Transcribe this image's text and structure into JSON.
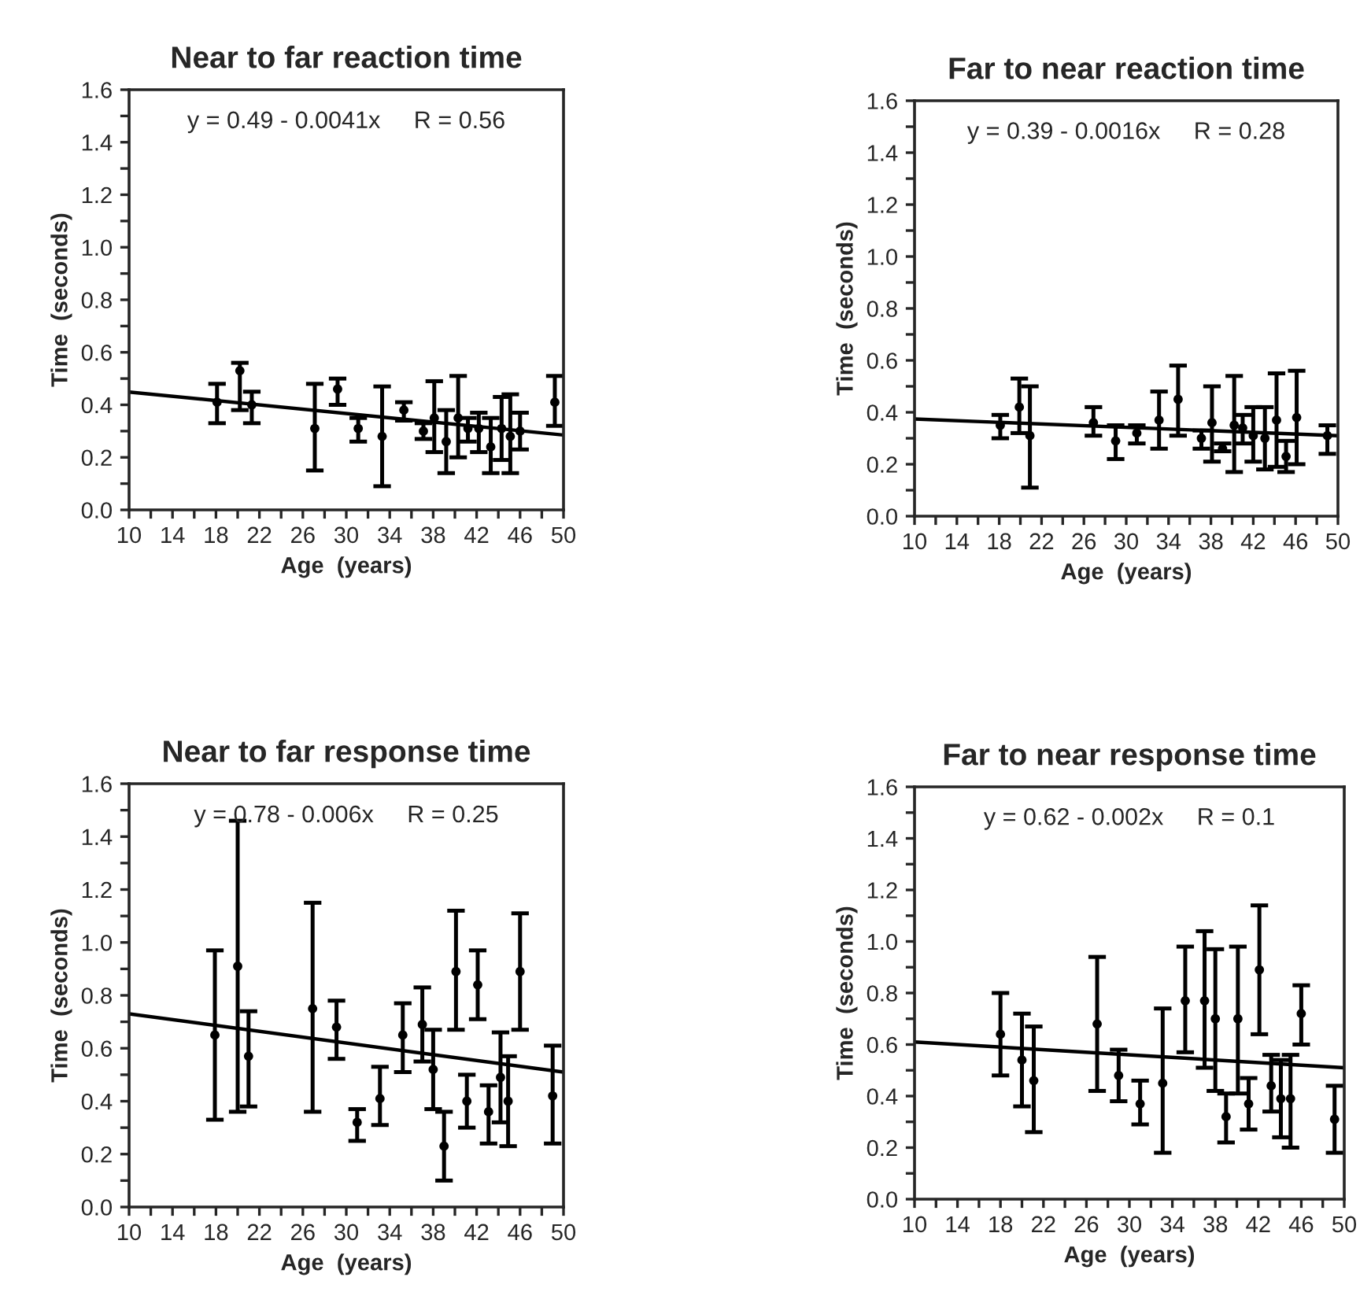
{
  "chart_data": [
    {
      "type": "scatter",
      "title": "Near to far reaction time",
      "xlabel": "Age  (years)",
      "ylabel": "Time  (seconds)",
      "annotations": [
        "y = 0.49 - 0.0041x     R = 0.56"
      ],
      "grid": false,
      "legend": false,
      "xlim": [
        10,
        50
      ],
      "ylim": [
        0,
        1.6
      ],
      "xticks": [
        10,
        {
          "value": 12,
          "label": null
        },
        14,
        {
          "value": 16,
          "label": null
        },
        18,
        {
          "value": 20,
          "label": null
        },
        22,
        {
          "value": 24,
          "label": null
        },
        26,
        {
          "value": 28,
          "label": null
        },
        30,
        {
          "value": 32,
          "label": null
        },
        34,
        {
          "value": 36,
          "label": null
        },
        38,
        {
          "value": 40,
          "label": null
        },
        42,
        {
          "value": 44,
          "label": null
        },
        46,
        {
          "value": 48,
          "label": null
        },
        50
      ],
      "yticks": [
        {
          "value": 0,
          "label": "0.0"
        },
        {
          "value": 0.1,
          "label": null
        },
        {
          "value": 0.2,
          "label": "0.2"
        },
        {
          "value": 0.3,
          "label": null
        },
        {
          "value": 0.4,
          "label": "0.4"
        },
        {
          "value": 0.5,
          "label": null
        },
        {
          "value": 0.6,
          "label": "0.6"
        },
        {
          "value": 0.7,
          "label": null
        },
        {
          "value": 0.8,
          "label": "0.8"
        },
        {
          "value": 0.9,
          "label": null
        },
        {
          "value": 1.0,
          "label": "1.0"
        },
        {
          "value": 1.1,
          "label": null
        },
        {
          "value": 1.2,
          "label": "1.2"
        },
        {
          "value": 1.3,
          "label": null
        },
        {
          "value": 1.4,
          "label": "1.4"
        },
        {
          "value": 1.5,
          "label": null
        },
        {
          "value": 1.6,
          "label": "1.6"
        }
      ],
      "series": [
        {
          "marker": "circle",
          "color": "#000000",
          "x": [
            18.1,
            20.2,
            21.3,
            27.1,
            29.2,
            31.1,
            33.3,
            35.3,
            37.1,
            38.1,
            39.2,
            40.3,
            41.2,
            42.2,
            43.3,
            44.3,
            45.1,
            46.0,
            49.2
          ],
          "values": [
            0.41,
            0.53,
            0.4,
            0.31,
            0.46,
            0.31,
            0.28,
            0.38,
            0.3,
            0.35,
            0.26,
            0.35,
            0.31,
            0.31,
            0.24,
            0.31,
            0.28,
            0.3,
            0.41
          ],
          "errors": [
            [
              0.33,
              0.48
            ],
            [
              0.38,
              0.56
            ],
            [
              0.33,
              0.45
            ],
            [
              0.15,
              0.48
            ],
            [
              0.4,
              0.5
            ],
            [
              0.26,
              0.35
            ],
            [
              0.09,
              0.47
            ],
            [
              0.34,
              0.41
            ],
            [
              0.27,
              0.33
            ],
            [
              0.22,
              0.49
            ],
            [
              0.14,
              0.38
            ],
            [
              0.2,
              0.51
            ],
            [
              0.26,
              0.35
            ],
            [
              0.22,
              0.37
            ],
            [
              0.14,
              0.35
            ],
            [
              0.19,
              0.43
            ],
            [
              0.14,
              0.44
            ],
            [
              0.23,
              0.37
            ],
            [
              0.32,
              0.51
            ]
          ]
        },
        {
          "type": "line",
          "color": "#000000",
          "x": [
            10,
            50
          ],
          "values": [
            0.449,
            0.285
          ]
        }
      ]
    },
    {
      "type": "scatter",
      "title": "Far to near reaction time",
      "xlabel": "Age  (years)",
      "ylabel": "Time  (seconds)",
      "annotations": [
        "y = 0.39 - 0.0016x     R = 0.28"
      ],
      "grid": false,
      "legend": false,
      "xlim": [
        10,
        50
      ],
      "ylim": [
        0,
        1.6
      ],
      "xticks": [
        10,
        {
          "value": 12,
          "label": null
        },
        14,
        {
          "value": 16,
          "label": null
        },
        18,
        {
          "value": 20,
          "label": null
        },
        22,
        {
          "value": 24,
          "label": null
        },
        26,
        {
          "value": 28,
          "label": null
        },
        30,
        {
          "value": 32,
          "label": null
        },
        34,
        {
          "value": 36,
          "label": null
        },
        38,
        {
          "value": 40,
          "label": null
        },
        42,
        {
          "value": 44,
          "label": null
        },
        46,
        {
          "value": 48,
          "label": null
        },
        50
      ],
      "yticks": [
        {
          "value": 0,
          "label": "0.0"
        },
        {
          "value": 0.1,
          "label": null
        },
        {
          "value": 0.2,
          "label": "0.2"
        },
        {
          "value": 0.3,
          "label": null
        },
        {
          "value": 0.4,
          "label": "0.4"
        },
        {
          "value": 0.5,
          "label": null
        },
        {
          "value": 0.6,
          "label": "0.6"
        },
        {
          "value": 0.7,
          "label": null
        },
        {
          "value": 0.8,
          "label": "0.8"
        },
        {
          "value": 0.9,
          "label": null
        },
        {
          "value": 1.0,
          "label": "1.0"
        },
        {
          "value": 1.1,
          "label": null
        },
        {
          "value": 1.2,
          "label": "1.2"
        },
        {
          "value": 1.3,
          "label": null
        },
        {
          "value": 1.4,
          "label": "1.4"
        },
        {
          "value": 1.5,
          "label": null
        },
        {
          "value": 1.6,
          "label": "1.6"
        }
      ],
      "series": [
        {
          "marker": "circle",
          "color": "#000000",
          "x": [
            18.1,
            19.9,
            20.9,
            26.9,
            29.0,
            31.0,
            33.1,
            34.9,
            37.1,
            38.1,
            39.1,
            40.2,
            41.0,
            42.0,
            43.1,
            44.2,
            45.1,
            46.1,
            49.0
          ],
          "values": [
            0.35,
            0.42,
            0.31,
            0.36,
            0.29,
            0.32,
            0.37,
            0.45,
            0.3,
            0.36,
            0.26,
            0.35,
            0.34,
            0.31,
            0.3,
            0.37,
            0.23,
            0.38,
            0.31
          ],
          "errors": [
            [
              0.3,
              0.39
            ],
            [
              0.32,
              0.53
            ],
            [
              0.11,
              0.5
            ],
            [
              0.31,
              0.42
            ],
            [
              0.22,
              0.35
            ],
            [
              0.28,
              0.35
            ],
            [
              0.26,
              0.48
            ],
            [
              0.31,
              0.58
            ],
            [
              0.26,
              0.33
            ],
            [
              0.21,
              0.5
            ],
            [
              0.25,
              0.28
            ],
            [
              0.17,
              0.54
            ],
            [
              0.28,
              0.39
            ],
            [
              0.21,
              0.42
            ],
            [
              0.18,
              0.42
            ],
            [
              0.19,
              0.55
            ],
            [
              0.17,
              0.29
            ],
            [
              0.2,
              0.56
            ],
            [
              0.24,
              0.35
            ]
          ]
        },
        {
          "type": "line",
          "color": "#000000",
          "x": [
            10,
            50
          ],
          "values": [
            0.374,
            0.31
          ]
        }
      ]
    },
    {
      "type": "scatter",
      "title": "Near to far response time",
      "xlabel": "Age  (years)",
      "ylabel": "Time  (seconds)",
      "annotations": [
        "y = 0.78 - 0.006x     R = 0.25"
      ],
      "grid": false,
      "legend": false,
      "xlim": [
        10,
        50
      ],
      "ylim": [
        0,
        1.6
      ],
      "xticks": [
        10,
        {
          "value": 12,
          "label": null
        },
        14,
        {
          "value": 16,
          "label": null
        },
        18,
        {
          "value": 20,
          "label": null
        },
        22,
        {
          "value": 24,
          "label": null
        },
        26,
        {
          "value": 28,
          "label": null
        },
        30,
        {
          "value": 32,
          "label": null
        },
        34,
        {
          "value": 36,
          "label": null
        },
        38,
        {
          "value": 40,
          "label": null
        },
        42,
        {
          "value": 44,
          "label": null
        },
        46,
        {
          "value": 48,
          "label": null
        },
        50
      ],
      "yticks": [
        {
          "value": 0,
          "label": "0.0"
        },
        {
          "value": 0.1,
          "label": null
        },
        {
          "value": 0.2,
          "label": "0.2"
        },
        {
          "value": 0.3,
          "label": null
        },
        {
          "value": 0.4,
          "label": "0.4"
        },
        {
          "value": 0.5,
          "label": null
        },
        {
          "value": 0.6,
          "label": "0.6"
        },
        {
          "value": 0.7,
          "label": null
        },
        {
          "value": 0.8,
          "label": "0.8"
        },
        {
          "value": 0.9,
          "label": null
        },
        {
          "value": 1.0,
          "label": "1.0"
        },
        {
          "value": 1.1,
          "label": null
        },
        {
          "value": 1.2,
          "label": "1.2"
        },
        {
          "value": 1.3,
          "label": null
        },
        {
          "value": 1.4,
          "label": "1.4"
        },
        {
          "value": 1.5,
          "label": null
        },
        {
          "value": 1.6,
          "label": "1.6"
        }
      ],
      "series": [
        {
          "marker": "circle",
          "color": "#000000",
          "x": [
            17.9,
            20.0,
            21.0,
            26.9,
            29.1,
            31.0,
            33.1,
            35.2,
            37.0,
            38.0,
            39.0,
            40.1,
            41.1,
            42.1,
            43.1,
            44.2,
            44.9,
            46.0,
            49.0
          ],
          "values": [
            0.65,
            0.91,
            0.57,
            0.75,
            0.68,
            0.32,
            0.41,
            0.65,
            0.69,
            0.52,
            0.23,
            0.89,
            0.4,
            0.84,
            0.36,
            0.49,
            0.4,
            0.89,
            0.42
          ],
          "errors": [
            [
              0.33,
              0.97
            ],
            [
              0.36,
              1.46
            ],
            [
              0.38,
              0.74
            ],
            [
              0.36,
              1.15
            ],
            [
              0.56,
              0.78
            ],
            [
              0.25,
              0.37
            ],
            [
              0.31,
              0.53
            ],
            [
              0.51,
              0.77
            ],
            [
              0.55,
              0.83
            ],
            [
              0.37,
              0.67
            ],
            [
              0.1,
              0.36
            ],
            [
              0.67,
              1.12
            ],
            [
              0.3,
              0.5
            ],
            [
              0.71,
              0.97
            ],
            [
              0.24,
              0.46
            ],
            [
              0.32,
              0.66
            ],
            [
              0.23,
              0.57
            ],
            [
              0.67,
              1.11
            ],
            [
              0.24,
              0.61
            ]
          ]
        },
        {
          "type": "line",
          "color": "#000000",
          "x": [
            10,
            50
          ],
          "values": [
            0.73,
            0.51
          ]
        }
      ]
    },
    {
      "type": "scatter",
      "title": "Far to near response time",
      "xlabel": "Age  (years)",
      "ylabel": "Time  (seconds)",
      "annotations": [
        "y = 0.62 - 0.002x     R = 0.1"
      ],
      "grid": false,
      "legend": false,
      "xlim": [
        10,
        50
      ],
      "ylim": [
        0,
        1.6
      ],
      "xticks": [
        10,
        {
          "value": 12,
          "label": null
        },
        14,
        {
          "value": 16,
          "label": null
        },
        18,
        {
          "value": 20,
          "label": null
        },
        22,
        {
          "value": 24,
          "label": null
        },
        26,
        {
          "value": 28,
          "label": null
        },
        30,
        {
          "value": 32,
          "label": null
        },
        34,
        {
          "value": 36,
          "label": null
        },
        38,
        {
          "value": 40,
          "label": null
        },
        42,
        {
          "value": 44,
          "label": null
        },
        46,
        {
          "value": 48,
          "label": null
        },
        50
      ],
      "yticks": [
        {
          "value": 0,
          "label": "0.0"
        },
        {
          "value": 0.1,
          "label": null
        },
        {
          "value": 0.2,
          "label": "0.2"
        },
        {
          "value": 0.3,
          "label": null
        },
        {
          "value": 0.4,
          "label": "0.4"
        },
        {
          "value": 0.5,
          "label": null
        },
        {
          "value": 0.6,
          "label": "0.6"
        },
        {
          "value": 0.7,
          "label": null
        },
        {
          "value": 0.8,
          "label": "0.8"
        },
        {
          "value": 0.9,
          "label": null
        },
        {
          "value": 1.0,
          "label": "1.0"
        },
        {
          "value": 1.1,
          "label": null
        },
        {
          "value": 1.2,
          "label": "1.2"
        },
        {
          "value": 1.3,
          "label": null
        },
        {
          "value": 1.4,
          "label": "1.4"
        },
        {
          "value": 1.5,
          "label": null
        },
        {
          "value": 1.6,
          "label": "1.6"
        }
      ],
      "series": [
        {
          "marker": "circle",
          "color": "#000000",
          "x": [
            18.0,
            20.0,
            21.1,
            27.0,
            29.0,
            31.0,
            33.1,
            35.2,
            37.0,
            38.0,
            39.0,
            40.1,
            41.1,
            42.1,
            43.2,
            44.1,
            45.0,
            46.0,
            49.1
          ],
          "values": [
            0.64,
            0.54,
            0.46,
            0.68,
            0.48,
            0.37,
            0.45,
            0.77,
            0.77,
            0.7,
            0.32,
            0.7,
            0.37,
            0.89,
            0.44,
            0.39,
            0.39,
            0.72,
            0.31
          ],
          "errors": [
            [
              0.48,
              0.8
            ],
            [
              0.36,
              0.72
            ],
            [
              0.26,
              0.67
            ],
            [
              0.42,
              0.94
            ],
            [
              0.38,
              0.58
            ],
            [
              0.29,
              0.46
            ],
            [
              0.18,
              0.74
            ],
            [
              0.57,
              0.98
            ],
            [
              0.51,
              1.04
            ],
            [
              0.42,
              0.97
            ],
            [
              0.22,
              0.41
            ],
            [
              0.41,
              0.98
            ],
            [
              0.27,
              0.47
            ],
            [
              0.64,
              1.14
            ],
            [
              0.34,
              0.56
            ],
            [
              0.24,
              0.54
            ],
            [
              0.2,
              0.56
            ],
            [
              0.6,
              0.83
            ],
            [
              0.18,
              0.44
            ]
          ]
        },
        {
          "type": "line",
          "color": "#000000",
          "x": [
            10,
            50
          ],
          "values": [
            0.61,
            0.51
          ]
        }
      ]
    }
  ]
}
